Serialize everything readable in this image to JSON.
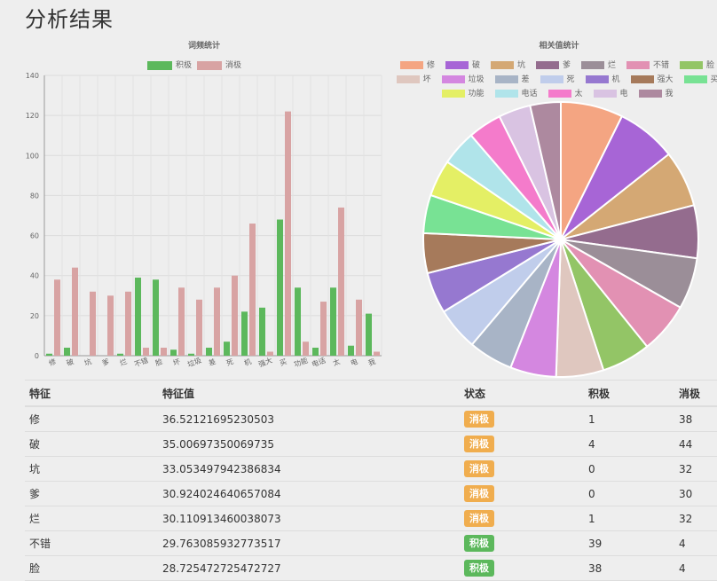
{
  "page_title": "分析结果",
  "colors": {
    "positive_bar": "#5cb85c",
    "negative_bar": "#d8a3a3",
    "badge_negative": "#f0ad4e",
    "badge_positive": "#5cb85c"
  },
  "chart_data": [
    {
      "type": "bar",
      "title": "词频统计",
      "categories": [
        "修",
        "破",
        "坑",
        "爹",
        "烂",
        "不错",
        "脸",
        "坏",
        "垃圾",
        "差",
        "死",
        "机",
        "强大",
        "买",
        "功能",
        "电话",
        "太",
        "电",
        "我"
      ],
      "series": [
        {
          "name": "积极",
          "color": "#5cb85c",
          "values": [
            1,
            4,
            0,
            0,
            1,
            39,
            38,
            3,
            1,
            4,
            7,
            22,
            24,
            68,
            34,
            4,
            34,
            5,
            21
          ]
        },
        {
          "name": "消极",
          "color": "#d8a3a3",
          "values": [
            38,
            44,
            32,
            30,
            32,
            4,
            4,
            34,
            28,
            34,
            40,
            66,
            2,
            122,
            7,
            27,
            74,
            28,
            2
          ]
        }
      ],
      "ylim": [
        0,
        140
      ],
      "yticks": [
        0,
        20,
        40,
        60,
        80,
        100,
        120,
        140
      ],
      "grid": true,
      "legend": "top"
    },
    {
      "type": "pie",
      "title": "相关值统计",
      "labels": [
        "修",
        "破",
        "坑",
        "爹",
        "烂",
        "不错",
        "脸",
        "坏",
        "垃圾",
        "差",
        "死",
        "机",
        "强大",
        "买",
        "功能",
        "电话",
        "太",
        "电",
        "我"
      ],
      "values": [
        36.52,
        35.01,
        33.05,
        30.92,
        30.11,
        29.76,
        28.73,
        27.8,
        26.9,
        26.0,
        25.1,
        24.2,
        23.3,
        22.4,
        21.5,
        20.6,
        19.7,
        18.8,
        17.9
      ],
      "colors": [
        "#f4a582",
        "#a765d6",
        "#d4a874",
        "#946c8e",
        "#9b8e98",
        "#e291b3",
        "#93c566",
        "#dfc7bf",
        "#d487e0",
        "#a8b4c6",
        "#c0cdeb",
        "#9678d0",
        "#a67a5b",
        "#78e294",
        "#e4ef65",
        "#b0e4ea",
        "#f47bcb",
        "#d9c3e2",
        "#ad899f"
      ],
      "legend": "top"
    }
  ],
  "table": {
    "headers": {
      "feature": "特征",
      "value": "特征值",
      "status": "状态",
      "positive": "积极",
      "negative": "消极"
    },
    "rows": [
      {
        "feature": "修",
        "value": "36.52121695230503",
        "status": "消极",
        "status_type": "neg",
        "positive": "1",
        "negative": "38"
      },
      {
        "feature": "破",
        "value": "35.00697350069735",
        "status": "消极",
        "status_type": "neg",
        "positive": "4",
        "negative": "44"
      },
      {
        "feature": "坑",
        "value": "33.053497942386834",
        "status": "消极",
        "status_type": "neg",
        "positive": "0",
        "negative": "32"
      },
      {
        "feature": "爹",
        "value": "30.924024640657084",
        "status": "消极",
        "status_type": "neg",
        "positive": "0",
        "negative": "30"
      },
      {
        "feature": "烂",
        "value": "30.110913460038073",
        "status": "消极",
        "status_type": "neg",
        "positive": "1",
        "negative": "32"
      },
      {
        "feature": "不错",
        "value": "29.763085932773517",
        "status": "积极",
        "status_type": "pos",
        "positive": "39",
        "negative": "4"
      },
      {
        "feature": "脸",
        "value": "28.725472725472727",
        "status": "积极",
        "status_type": "pos",
        "positive": "38",
        "negative": "4"
      }
    ]
  }
}
